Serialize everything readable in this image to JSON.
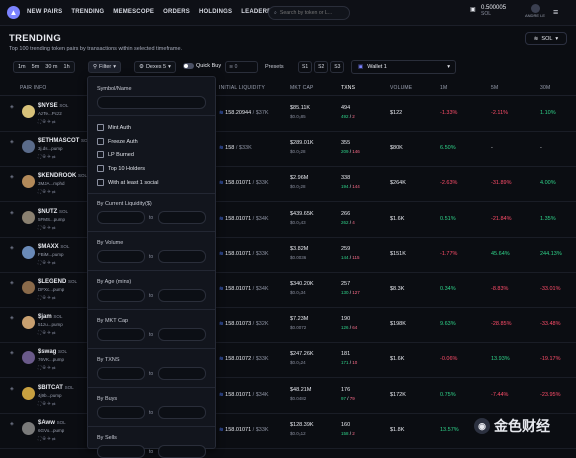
{
  "nav": {
    "links": [
      "NEW PAIRS",
      "TRENDING",
      "MEMESCOPE",
      "ORDERS",
      "HOLDINGS",
      "LEADERBOARD"
    ],
    "search_placeholder": "Search by token or L...",
    "balance": "0.500005",
    "balance_unit": "SOL",
    "user": "ANDRE LE"
  },
  "page": {
    "title": "TRENDING",
    "subtitle": "Top 100 trending token pairs by transactions within selected timeframe.",
    "chain": "SOL"
  },
  "controls": {
    "times": [
      "1m",
      "5m",
      "30 m",
      "1h"
    ],
    "filter": "Filter",
    "dexes": "Dexes 5",
    "quick_buy": "Quick Buy",
    "quick_buy_value": "0",
    "presets": "Presets",
    "preset_buttons": [
      "S1",
      "S2",
      "S3"
    ],
    "wallet": "Wallet 1"
  },
  "table": {
    "headers": {
      "pair": "PAIR INFO",
      "liq": "INITIAL LIQUIDITY",
      "mc": "MKT CAP",
      "tx": "TXNS",
      "vol": "VOLUME",
      "c1": "1M",
      "c5": "5M",
      "c30": "30M"
    },
    "rows": [
      {
        "name": "$NYSE",
        "chain": "SOL",
        "sub": "AzTe...Pcz2",
        "liq": "158.20944",
        "liqusd": "$37K",
        "mc": "$85.11K",
        "mc2": "$0.0₀85",
        "tx": "494",
        "tx_b": "492",
        "tx_s": "2",
        "vol": "$122",
        "c1": "-1.33%",
        "c5": "-2.11%",
        "c30": "1.10%"
      },
      {
        "name": "$ETHMASCOT",
        "chain": "SOL",
        "sub": "3j.ds...pump",
        "liq": "158",
        "liqusd": "$33K",
        "mc": "$289.01K",
        "mc2": "$0.0₂28",
        "tx": "355",
        "tx_b": "209",
        "tx_s": "146",
        "vol": "$80K",
        "c1": "6.50%",
        "c5": "-",
        "c30": "-"
      },
      {
        "name": "$KENDROOK",
        "chain": "SOL",
        "sub": "3MJA...mphd",
        "liq": "158.01071",
        "liqusd": "$33K",
        "mc": "$2.96M",
        "mc2": "$0.0₂28",
        "tx": "338",
        "tx_b": "194",
        "tx_s": "144",
        "vol": "$264K",
        "c1": "-2.63%",
        "c5": "-31.89%",
        "c30": "4.00%"
      },
      {
        "name": "$NUTZ",
        "chain": "SOL",
        "sub": "5FMS...pump",
        "liq": "158.01071",
        "liqusd": "$34K",
        "mc": "$439.65K",
        "mc2": "$0.0₀43",
        "tx": "266",
        "tx_b": "262",
        "tx_s": "4",
        "vol": "$1.6K",
        "c1": "0.51%",
        "c5": "-21.84%",
        "c30": "1.35%"
      },
      {
        "name": "$MAXX",
        "chain": "SOL",
        "sub": "FBiM...pump",
        "liq": "158.01071",
        "liqusd": "$33K",
        "mc": "$3.82M",
        "mc2": "$0.0036",
        "tx": "259",
        "tx_b": "144",
        "tx_s": "115",
        "vol": "$151K",
        "c1": "-1.77%",
        "c5": "45.64%",
        "c30": "244.13%"
      },
      {
        "name": "$LEGEND",
        "chain": "SOL",
        "sub": "DFXc...pump",
        "liq": "158.01071",
        "liqusd": "$34K",
        "mc": "$340.20K",
        "mc2": "$0.0₀34",
        "tx": "257",
        "tx_b": "130",
        "tx_s": "127",
        "vol": "$8.3K",
        "c1": "0.34%",
        "c5": "-8.83%",
        "c30": "-33.01%"
      },
      {
        "name": "$jam",
        "chain": "SOL",
        "sub": "51zu...pump",
        "liq": "158.01073",
        "liqusd": "$32K",
        "mc": "$7.23M",
        "mc2": "$0.0072",
        "tx": "190",
        "tx_b": "126",
        "tx_s": "64",
        "vol": "$198K",
        "c1": "9.63%",
        "c5": "-28.85%",
        "c30": "-33.48%"
      },
      {
        "name": "$swag",
        "chain": "SOL",
        "sub": "76VK...pump",
        "liq": "158.01072",
        "liqusd": "$33K",
        "mc": "$247.26K",
        "mc2": "$0.0₀24",
        "tx": "181",
        "tx_b": "171",
        "tx_s": "10",
        "vol": "$1.6K",
        "c1": "-0.06%",
        "c5": "13.93%",
        "c30": "-19.17%"
      },
      {
        "name": "$BITCAT",
        "chain": "SOL",
        "sub": "4j9b...pump",
        "liq": "158.01071",
        "liqusd": "$34K",
        "mc": "$48.21M",
        "mc2": "$0.0482",
        "tx": "176",
        "tx_b": "97",
        "tx_s": "79",
        "vol": "$172K",
        "c1": "0.75%",
        "c5": "-7.44%",
        "c30": "-23.95%"
      },
      {
        "name": "$Aww",
        "chain": "SOL",
        "sub": "6GVo...pump",
        "liq": "158.01071",
        "liqusd": "$33K",
        "mc": "$128.39K",
        "mc2": "$0.0₀12",
        "tx": "160",
        "tx_b": "158",
        "tx_s": "2",
        "vol": "$1.8K",
        "c1": "13.57%",
        "c5": "",
        "c30": ""
      }
    ]
  },
  "filter_panel": {
    "symbol": "Symbol/Name",
    "checks": [
      "Mint Auth",
      "Freeze Auth",
      "LP Burned",
      "Top 10 Holders",
      "With at least 1 social"
    ],
    "sections": [
      "By Current Liquidity($)",
      "By Volume",
      "By Age (mins)",
      "By MKT Cap",
      "By TXNS",
      "By Buys",
      "By Sells"
    ],
    "to": "to"
  },
  "watermark": "金色财经"
}
